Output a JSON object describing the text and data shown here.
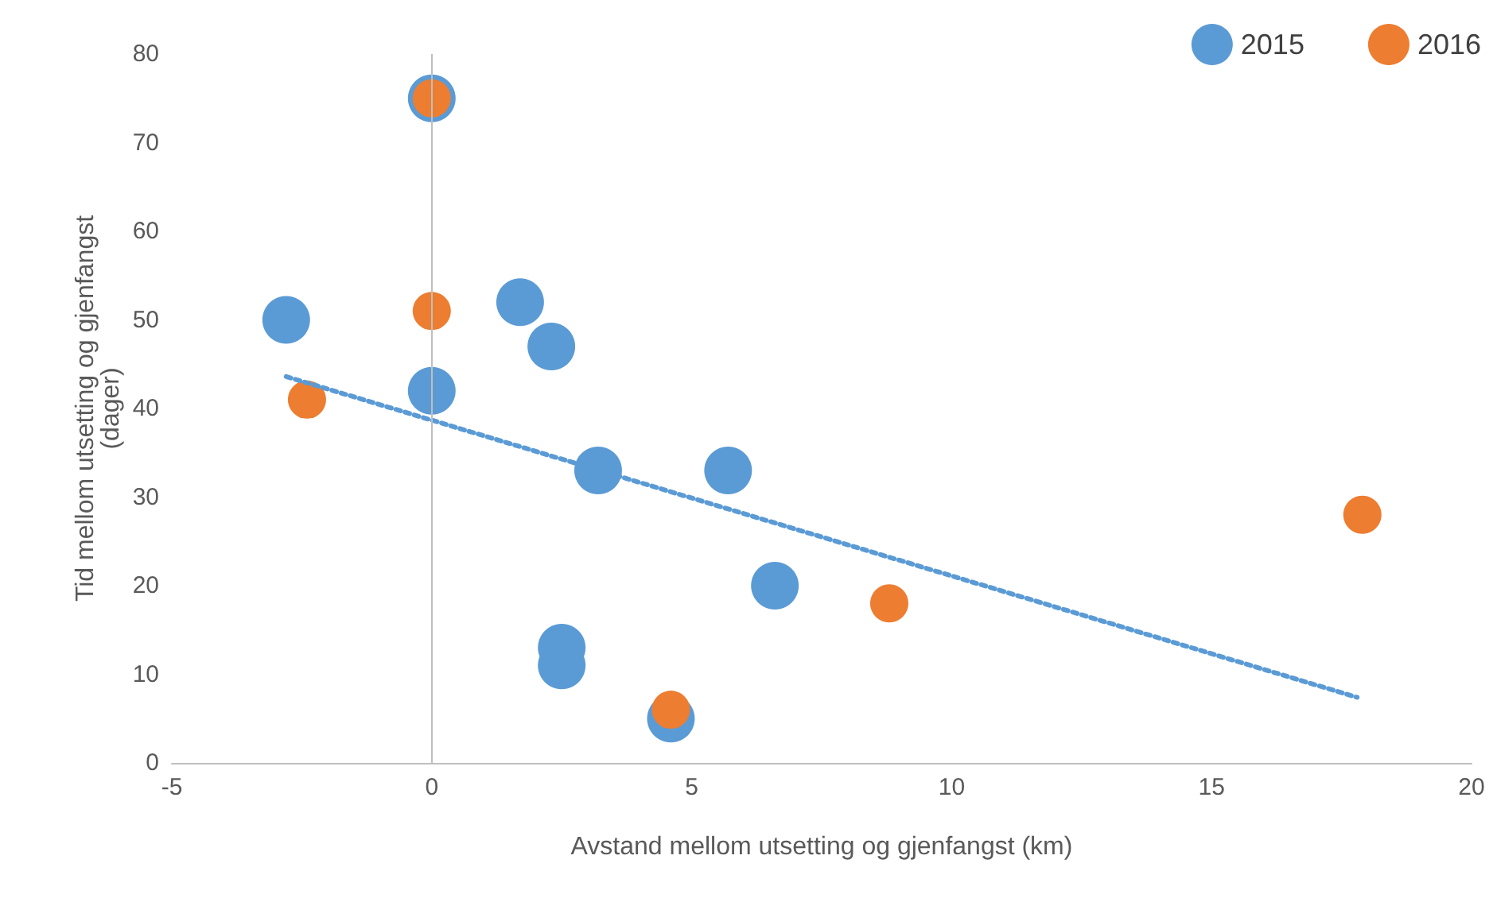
{
  "chart_data": {
    "type": "scatter",
    "xlabel": "Avstand mellom utsetting og gjenfangst (km)",
    "ylabel": "Tid mellom utsetting og gjenfangst\n(dager)",
    "xlim": [
      -5,
      20
    ],
    "xticks": [
      -5,
      0,
      5,
      10,
      15,
      20
    ],
    "ylim": [
      0,
      80
    ],
    "yticks": [
      0,
      10,
      20,
      30,
      40,
      50,
      60,
      70,
      80
    ],
    "grid": false,
    "legend": "top right",
    "marker": "circle",
    "ref_lines": [
      {
        "axis": "x",
        "value": 0,
        "color": "#bfbfbf"
      }
    ],
    "series": [
      {
        "name": "2015",
        "color": "#5b9bd5",
        "x": [
          -2.8,
          0,
          0,
          1.7,
          2.3,
          3.2,
          2.5,
          2.5,
          5.7,
          6.6,
          4.6
        ],
        "values": [
          50,
          75,
          42,
          52,
          47,
          33,
          13,
          11,
          33,
          20,
          5
        ]
      },
      {
        "name": "2016",
        "color": "#ed7d31",
        "x": [
          0,
          0,
          -2.4,
          8.8,
          17.9,
          4.6
        ],
        "values": [
          75,
          51,
          41,
          18,
          28,
          6
        ]
      },
      {
        "type": "line",
        "color": "#5b9bd5",
        "line_style": "dotted",
        "marker": "none",
        "x": [
          -2.8,
          17.8
        ],
        "values": [
          43.6,
          7.4
        ]
      }
    ]
  }
}
